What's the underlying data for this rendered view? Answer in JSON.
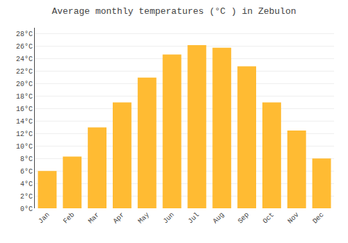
{
  "chart_data": {
    "type": "bar",
    "title": "Average monthly temperatures (°C ) in Zebulon",
    "categories": [
      "Jan",
      "Feb",
      "Mar",
      "Apr",
      "May",
      "Jun",
      "Jul",
      "Aug",
      "Sep",
      "Oct",
      "Nov",
      "Dec"
    ],
    "values": [
      6,
      8.3,
      13,
      17,
      21,
      24.7,
      26.2,
      25.8,
      22.8,
      17,
      12.5,
      8
    ],
    "color": "#FFBB33",
    "ylim": [
      0,
      29
    ],
    "yticks": [
      {
        "value": 0,
        "label": "0°C"
      },
      {
        "value": 2,
        "label": "2°C"
      },
      {
        "value": 4,
        "label": "4°C"
      },
      {
        "value": 6,
        "label": "6°C"
      },
      {
        "value": 8,
        "label": "8°C"
      },
      {
        "value": 10,
        "label": "10°C"
      },
      {
        "value": 12,
        "label": "12°C"
      },
      {
        "value": 14,
        "label": "14°C"
      },
      {
        "value": 16,
        "label": "16°C"
      },
      {
        "value": 18,
        "label": "18°C"
      },
      {
        "value": 20,
        "label": "20°C"
      },
      {
        "value": 22,
        "label": "22°C"
      },
      {
        "value": 24,
        "label": "24°C"
      },
      {
        "value": 26,
        "label": "26°C"
      },
      {
        "value": 28,
        "label": "28°C"
      }
    ],
    "grid": true
  }
}
